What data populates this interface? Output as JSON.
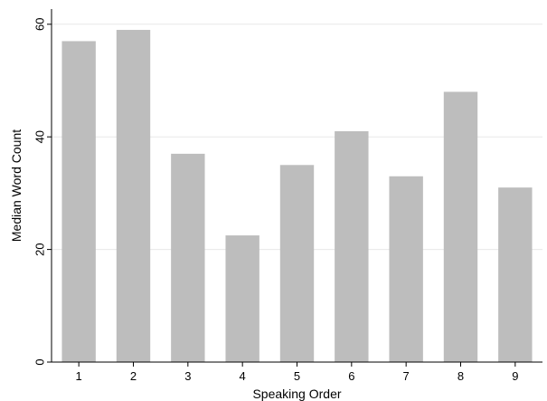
{
  "chart_data": {
    "type": "bar",
    "title": "",
    "xlabel": "Speaking Order",
    "ylabel": "Median Word Count",
    "categories": [
      "1",
      "2",
      "3",
      "4",
      "5",
      "6",
      "7",
      "8",
      "9"
    ],
    "values": [
      57,
      59,
      37,
      22.5,
      35,
      41,
      33,
      48,
      31
    ],
    "ylim": [
      0,
      62.7
    ],
    "yticks": [
      "0",
      "20",
      "40",
      "60"
    ],
    "grid": true,
    "legend": "none",
    "colors": {
      "bar": "#bdbdbd",
      "grid": "#e8e8e8",
      "axis": "#000000"
    }
  }
}
